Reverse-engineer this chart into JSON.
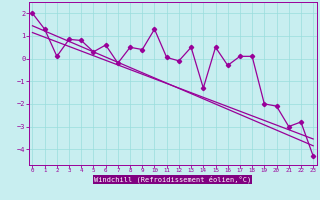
{
  "title": "",
  "xlabel": "Windchill (Refroidissement éolien,°C)",
  "ylabel": "",
  "bg_color": "#c8eef0",
  "label_bg_color": "#800080",
  "line_color": "#990099",
  "grid_color": "#99dddd",
  "x_ticks": [
    0,
    1,
    2,
    3,
    4,
    5,
    6,
    7,
    8,
    9,
    10,
    11,
    12,
    13,
    14,
    15,
    16,
    17,
    18,
    19,
    20,
    21,
    22,
    23
  ],
  "y_ticks": [
    -4,
    -3,
    -2,
    -1,
    0,
    1,
    2
  ],
  "ylim": [
    -4.7,
    2.5
  ],
  "xlim": [
    -0.3,
    23.3
  ],
  "data_x": [
    0,
    1,
    2,
    3,
    4,
    5,
    6,
    7,
    8,
    9,
    10,
    11,
    12,
    13,
    14,
    15,
    16,
    17,
    18,
    19,
    20,
    21,
    22,
    23
  ],
  "data_y": [
    2.0,
    1.3,
    0.1,
    0.85,
    0.8,
    0.3,
    0.6,
    -0.2,
    0.5,
    0.4,
    1.3,
    0.05,
    -0.1,
    0.5,
    -1.3,
    0.5,
    -0.3,
    0.1,
    0.1,
    -2.0,
    -2.1,
    -3.0,
    -2.8,
    -4.3
  ],
  "trend_x": [
    0,
    23
  ],
  "trend_y": [
    1.45,
    -3.85
  ],
  "trend2_x": [
    0,
    23
  ],
  "trend2_y": [
    1.15,
    -3.55
  ]
}
